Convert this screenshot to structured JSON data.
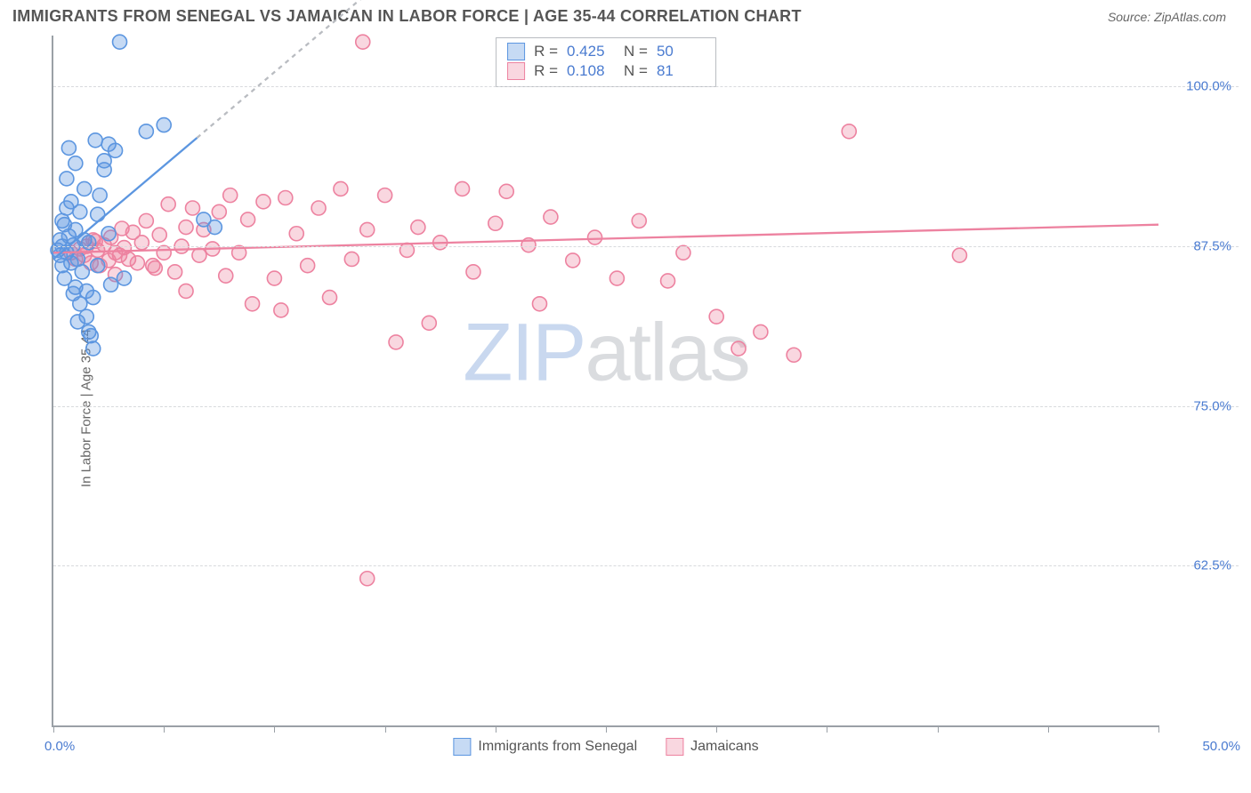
{
  "header": {
    "title": "IMMIGRANTS FROM SENEGAL VS JAMAICAN IN LABOR FORCE | AGE 35-44 CORRELATION CHART",
    "source": "Source: ZipAtlas.com"
  },
  "axes": {
    "y_label": "In Labor Force | Age 35-44",
    "x_min_label": "0.0%",
    "x_max_label": "50.0%",
    "xlim": [
      0,
      50
    ],
    "ylim": [
      50,
      104
    ],
    "y_gridlines": [
      62.5,
      75.0,
      87.5,
      100.0
    ],
    "y_tick_labels": [
      "62.5%",
      "75.0%",
      "87.5%",
      "100.0%"
    ],
    "x_ticks": [
      0,
      5,
      10,
      15,
      20,
      25,
      30,
      35,
      40,
      45,
      50
    ],
    "grid_color": "#d8dadd",
    "axis_color": "#9aa0a6",
    "tick_label_color": "#4a7bd0"
  },
  "series": {
    "senegal": {
      "label": "Immigrants from Senegal",
      "color_fill": "rgba(92,150,224,0.35)",
      "color_stroke": "#5c96e0",
      "R": "0.425",
      "N": "50",
      "trend": {
        "x1": 0,
        "y1": 86.5,
        "x2": 6.5,
        "y2": 96.0,
        "extend_x2": 14,
        "extend_y2": 107
      },
      "points": [
        [
          0.2,
          87.2
        ],
        [
          0.3,
          86.8
        ],
        [
          0.3,
          88.0
        ],
        [
          0.4,
          86.0
        ],
        [
          0.4,
          87.5
        ],
        [
          0.5,
          85.0
        ],
        [
          0.5,
          89.2
        ],
        [
          0.6,
          87.0
        ],
        [
          0.6,
          90.5
        ],
        [
          0.7,
          88.3
        ],
        [
          0.8,
          86.2
        ],
        [
          0.8,
          91.0
        ],
        [
          0.9,
          87.6
        ],
        [
          1.0,
          84.3
        ],
        [
          1.0,
          88.8
        ],
        [
          1.1,
          86.5
        ],
        [
          1.2,
          83.0
        ],
        [
          1.3,
          85.5
        ],
        [
          1.4,
          88.0
        ],
        [
          1.5,
          84.0
        ],
        [
          1.5,
          82.0
        ],
        [
          1.6,
          80.8
        ],
        [
          1.7,
          80.5
        ],
        [
          1.8,
          83.5
        ],
        [
          1.8,
          79.5
        ],
        [
          2.0,
          86.0
        ],
        [
          2.0,
          90.0
        ],
        [
          2.3,
          93.5
        ],
        [
          2.3,
          94.2
        ],
        [
          2.5,
          88.5
        ],
        [
          2.5,
          95.5
        ],
        [
          2.8,
          95.0
        ],
        [
          1.0,
          94.0
        ],
        [
          3.0,
          103.5
        ],
        [
          2.1,
          91.5
        ],
        [
          3.2,
          85.0
        ],
        [
          4.2,
          96.5
        ],
        [
          5.0,
          97.0
        ],
        [
          1.2,
          90.2
        ],
        [
          0.6,
          92.8
        ],
        [
          1.9,
          95.8
        ],
        [
          1.4,
          92.0
        ],
        [
          0.9,
          83.8
        ],
        [
          6.8,
          89.6
        ],
        [
          7.3,
          89.0
        ],
        [
          0.7,
          95.2
        ],
        [
          0.4,
          89.5
        ],
        [
          1.1,
          81.6
        ],
        [
          2.6,
          84.5
        ],
        [
          1.6,
          87.8
        ]
      ]
    },
    "jamaican": {
      "label": "Jamaicans",
      "color_fill": "rgba(237,130,160,0.32)",
      "color_stroke": "#ed82a0",
      "R": "0.108",
      "N": "81",
      "trend": {
        "x1": 0,
        "y1": 87.0,
        "x2": 50,
        "y2": 89.2
      },
      "points": [
        [
          0.8,
          87.0
        ],
        [
          1.0,
          86.5
        ],
        [
          1.2,
          87.3
        ],
        [
          1.4,
          86.8
        ],
        [
          1.5,
          87.5
        ],
        [
          1.7,
          86.2
        ],
        [
          1.8,
          88.0
        ],
        [
          2.0,
          87.2
        ],
        [
          2.1,
          86.0
        ],
        [
          2.3,
          87.6
        ],
        [
          2.5,
          86.4
        ],
        [
          2.6,
          88.2
        ],
        [
          2.8,
          87.0
        ],
        [
          3.0,
          86.8
        ],
        [
          3.2,
          87.4
        ],
        [
          3.4,
          86.5
        ],
        [
          3.6,
          88.6
        ],
        [
          3.8,
          86.2
        ],
        [
          4.0,
          87.8
        ],
        [
          4.2,
          89.5
        ],
        [
          4.5,
          86.0
        ],
        [
          4.8,
          88.4
        ],
        [
          5.0,
          87.0
        ],
        [
          5.2,
          90.8
        ],
        [
          5.5,
          85.5
        ],
        [
          5.8,
          87.5
        ],
        [
          6.0,
          89.0
        ],
        [
          6.3,
          90.5
        ],
        [
          6.6,
          86.8
        ],
        [
          6.8,
          88.8
        ],
        [
          7.2,
          87.3
        ],
        [
          7.5,
          90.2
        ],
        [
          7.8,
          85.2
        ],
        [
          8.0,
          91.5
        ],
        [
          8.4,
          87.0
        ],
        [
          8.8,
          89.6
        ],
        [
          9.0,
          83.0
        ],
        [
          9.5,
          91.0
        ],
        [
          10.0,
          85.0
        ],
        [
          10.5,
          91.3
        ],
        [
          11.0,
          88.5
        ],
        [
          11.5,
          86.0
        ],
        [
          12.0,
          90.5
        ],
        [
          12.5,
          83.5
        ],
        [
          13.0,
          92.0
        ],
        [
          13.5,
          86.5
        ],
        [
          14.0,
          103.5
        ],
        [
          14.2,
          88.8
        ],
        [
          15.0,
          91.5
        ],
        [
          15.5,
          80.0
        ],
        [
          16.0,
          87.2
        ],
        [
          16.5,
          89.0
        ],
        [
          17.0,
          81.5
        ],
        [
          17.5,
          87.8
        ],
        [
          18.5,
          92.0
        ],
        [
          19.0,
          85.5
        ],
        [
          20.0,
          89.3
        ],
        [
          20.5,
          91.8
        ],
        [
          21.5,
          87.6
        ],
        [
          22.0,
          83.0
        ],
        [
          22.5,
          89.8
        ],
        [
          23.5,
          86.4
        ],
        [
          24.5,
          88.2
        ],
        [
          25.5,
          85.0
        ],
        [
          26.5,
          89.5
        ],
        [
          27.5,
          101.5
        ],
        [
          27.8,
          84.8
        ],
        [
          28.5,
          87.0
        ],
        [
          30.0,
          82.0
        ],
        [
          31.0,
          79.5
        ],
        [
          32.0,
          80.8
        ],
        [
          33.5,
          79.0
        ],
        [
          36.0,
          96.5
        ],
        [
          41.0,
          86.8
        ],
        [
          14.2,
          61.5
        ],
        [
          10.3,
          82.5
        ],
        [
          6.0,
          84.0
        ],
        [
          4.6,
          85.8
        ],
        [
          2.8,
          85.3
        ],
        [
          3.1,
          88.9
        ],
        [
          1.9,
          87.9
        ]
      ]
    }
  },
  "legend_bottom": {
    "items": [
      {
        "swatch_fill": "rgba(92,150,224,0.35)",
        "swatch_stroke": "#5c96e0",
        "label": "Immigrants from Senegal"
      },
      {
        "swatch_fill": "rgba(237,130,160,0.32)",
        "swatch_stroke": "#ed82a0",
        "label": "Jamaicans"
      }
    ]
  },
  "watermark": {
    "part1": "ZIP",
    "part2": "atlas"
  },
  "style": {
    "marker_radius": 8,
    "marker_stroke_width": 1.6,
    "trend_line_width": 2.3,
    "dash_pattern": "5,5"
  }
}
